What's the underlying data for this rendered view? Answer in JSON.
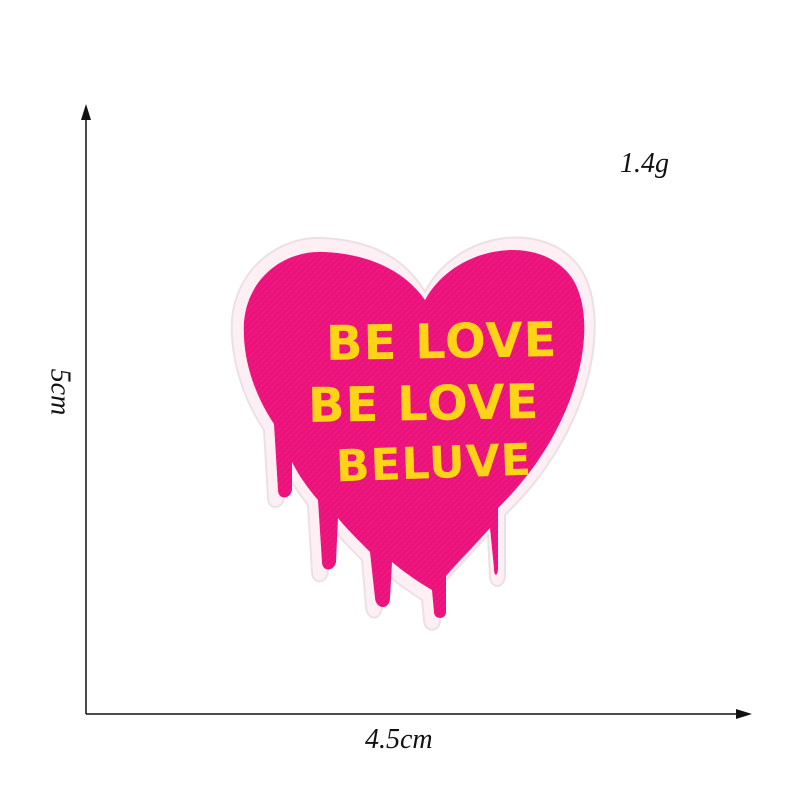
{
  "dimensions": {
    "weight": "1.4g",
    "width": "4.5cm",
    "height": "5cm"
  },
  "patch": {
    "lines": [
      "BE LOVE",
      "BE LOVE",
      "BELUVE"
    ],
    "colors": {
      "fill": "#f0157f",
      "border": "#fdeff4",
      "text": "#ffd318"
    }
  },
  "colors": {
    "axis": "#111111",
    "background": "#ffffff"
  }
}
